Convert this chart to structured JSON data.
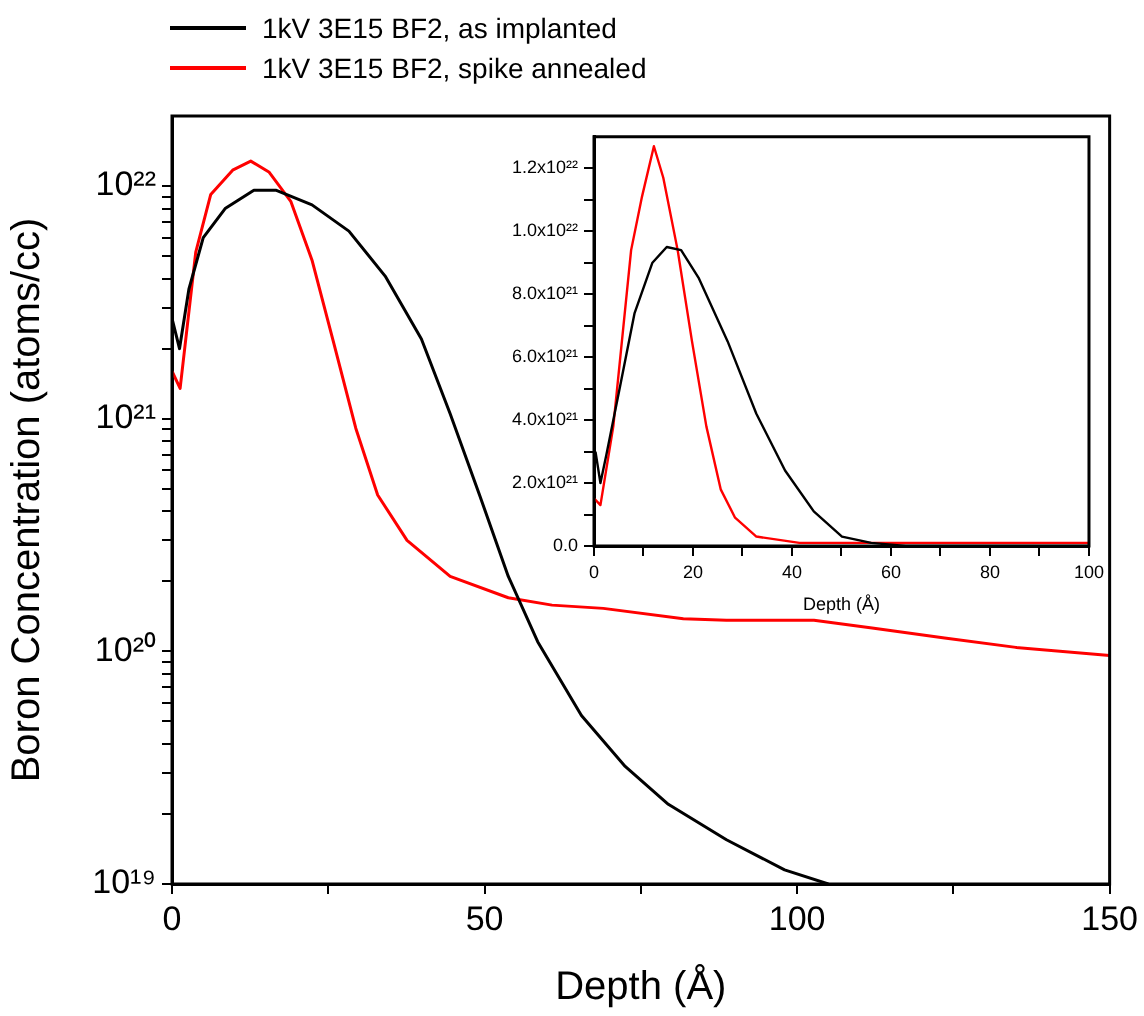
{
  "chart_data": [
    {
      "type": "line",
      "xlabel": "Depth (Å)",
      "ylabel": "Boron Concentration (atoms/cc)",
      "log": "y",
      "legend": "top left",
      "xlim": [
        0,
        150
      ],
      "xticks": [
        0,
        {
          "value": 25,
          "label": null
        },
        50,
        {
          "value": 75,
          "label": null
        },
        100,
        {
          "value": 125,
          "label": null
        },
        150
      ],
      "ylim": [
        1e+19,
        2e+22
      ],
      "yticks": [
        {
          "value": 1e+19,
          "label": "10¹⁹"
        },
        {
          "value": 2e+19,
          "label": null
        },
        {
          "value": 3e+19,
          "label": null
        },
        {
          "value": 4e+19,
          "label": null
        },
        {
          "value": 5e+19,
          "label": null
        },
        {
          "value": 6e+19,
          "label": null
        },
        {
          "value": 7e+19,
          "label": null
        },
        {
          "value": 8e+19,
          "label": null
        },
        {
          "value": 9e+19,
          "label": null
        },
        {
          "value": 1e+20,
          "label": "10²⁰"
        },
        {
          "value": 2e+20,
          "label": null
        },
        {
          "value": 3e+20,
          "label": null
        },
        {
          "value": 4e+20,
          "label": null
        },
        {
          "value": 5e+20,
          "label": null
        },
        {
          "value": 6e+20,
          "label": null
        },
        {
          "value": 7e+20,
          "label": null
        },
        {
          "value": 8e+20,
          "label": null
        },
        {
          "value": 9e+20,
          "label": null
        },
        {
          "value": 1e+21,
          "label": "10²¹"
        },
        {
          "value": 2e+21,
          "label": null
        },
        {
          "value": 3e+21,
          "label": null
        },
        {
          "value": 4e+21,
          "label": null
        },
        {
          "value": 5e+21,
          "label": null
        },
        {
          "value": 6e+21,
          "label": null
        },
        {
          "value": 7e+21,
          "label": null
        },
        {
          "value": 8e+21,
          "label": null
        },
        {
          "value": 9e+21,
          "label": null
        },
        {
          "value": 1e+22,
          "label": "10²²"
        }
      ],
      "series": [
        {
          "name": "1kV 3E15 BF2, as implanted",
          "color": "#000000",
          "x": [
            0,
            1.2,
            2.7,
            5,
            8.5,
            13.1,
            16.6,
            22.4,
            28.3,
            34.1,
            39.9,
            44.5,
            49.2,
            53.8,
            58.5,
            65.5,
            72.5,
            79.4,
            88.7,
            98,
            105
          ],
          "values": [
            2.7e+21,
            2e+21,
            3.6e+21,
            6e+21,
            8e+21,
            9.6e+21,
            9.6e+21,
            8.3e+21,
            6.4e+21,
            4.1e+21,
            2.2e+21,
            1.05e+21,
            4.7e+20,
            2.1e+20,
            1.1e+20,
            5.3e+19,
            3.2e+19,
            2.2e+19,
            1.55e+19,
            1.15e+19,
            1e+19
          ]
        },
        {
          "name": "1kV 3E15 BF2, spike annealed",
          "color": "#ff0000",
          "x": [
            0,
            1.3,
            3.8,
            6.2,
            9.7,
            12.6,
            15.5,
            19,
            22.4,
            25.9,
            29.4,
            32.9,
            37.6,
            44.5,
            53.8,
            60.8,
            69,
            81.8,
            88.7,
            102.7,
            112,
            123.6,
            135,
            150
          ],
          "values": [
            1.6e+21,
            1.35e+21,
            5.2e+21,
            9.2e+21,
            1.17e+22,
            1.28e+22,
            1.15e+22,
            8.6e+21,
            4.8e+21,
            2.1e+21,
            9.1e+20,
            4.7e+20,
            3e+20,
            2.1e+20,
            1.7e+20,
            1.58e+20,
            1.53e+20,
            1.38e+20,
            1.36e+20,
            1.36e+20,
            1.26e+20,
            1.14e+20,
            1.04e+20,
            9.6e+19
          ]
        }
      ]
    },
    {
      "type": "line",
      "xlabel": "Depth (Å)",
      "xlim": [
        0,
        100
      ],
      "xticks": [
        0,
        {
          "value": 10,
          "label": null
        },
        20,
        {
          "value": 30,
          "label": null
        },
        40,
        {
          "value": 50,
          "label": null
        },
        60,
        {
          "value": 70,
          "label": null
        },
        80,
        {
          "value": 90,
          "label": null
        },
        100
      ],
      "ylim": [
        0,
        1.3e+22
      ],
      "yticks": [
        {
          "value": 0,
          "label": "0.0"
        },
        {
          "value": 1e+21,
          "label": null
        },
        {
          "value": 2e+21,
          "label": "2.0x10²¹"
        },
        {
          "value": 3e+21,
          "label": null
        },
        {
          "value": 4e+21,
          "label": "4.0x10²¹"
        },
        {
          "value": 5e+21,
          "label": null
        },
        {
          "value": 6e+21,
          "label": "6.0x10²¹"
        },
        {
          "value": 7e+21,
          "label": null
        },
        {
          "value": 8e+21,
          "label": "8.0x10²¹"
        },
        {
          "value": 9e+21,
          "label": null
        },
        {
          "value": 1e+22,
          "label": "1.0x10²²"
        },
        {
          "value": 1.1e+22,
          "label": null
        },
        {
          "value": 1.2e+22,
          "label": "1.2x10²²"
        }
      ],
      "series": [
        {
          "color": "#000000",
          "x": [
            0.3,
            1.3,
            2.5,
            5.3,
            8.2,
            11.8,
            14.7,
            17.6,
            21.2,
            27,
            32.8,
            38.6,
            44.4,
            50.1,
            56,
            63,
            80,
            100
          ],
          "values": [
            3e+21,
            2e+21,
            2.9e+21,
            5.1e+21,
            7.4e+21,
            9e+21,
            9.5e+21,
            9.4e+21,
            8.5e+21,
            6.5e+21,
            4.2e+21,
            2.4e+21,
            1.1e+21,
            3e+20,
            1e+20,
            0,
            0,
            0
          ]
        },
        {
          "color": "#ff0000",
          "x": [
            0.1,
            1.3,
            3.9,
            7.5,
            9.7,
            12.1,
            14,
            16.9,
            19.8,
            22.7,
            25.6,
            28.5,
            32.8,
            41.5,
            60,
            80,
            100
          ],
          "values": [
            1.5e+21,
            1.3e+21,
            3.8e+21,
            9.4e+21,
            1.11e+22,
            1.27e+22,
            1.17e+22,
            9.4e+21,
            6.5e+21,
            3.8e+21,
            1.8e+21,
            9e+20,
            3e+20,
            1e+20,
            1e+20,
            1e+20,
            1e+20
          ]
        }
      ]
    }
  ]
}
